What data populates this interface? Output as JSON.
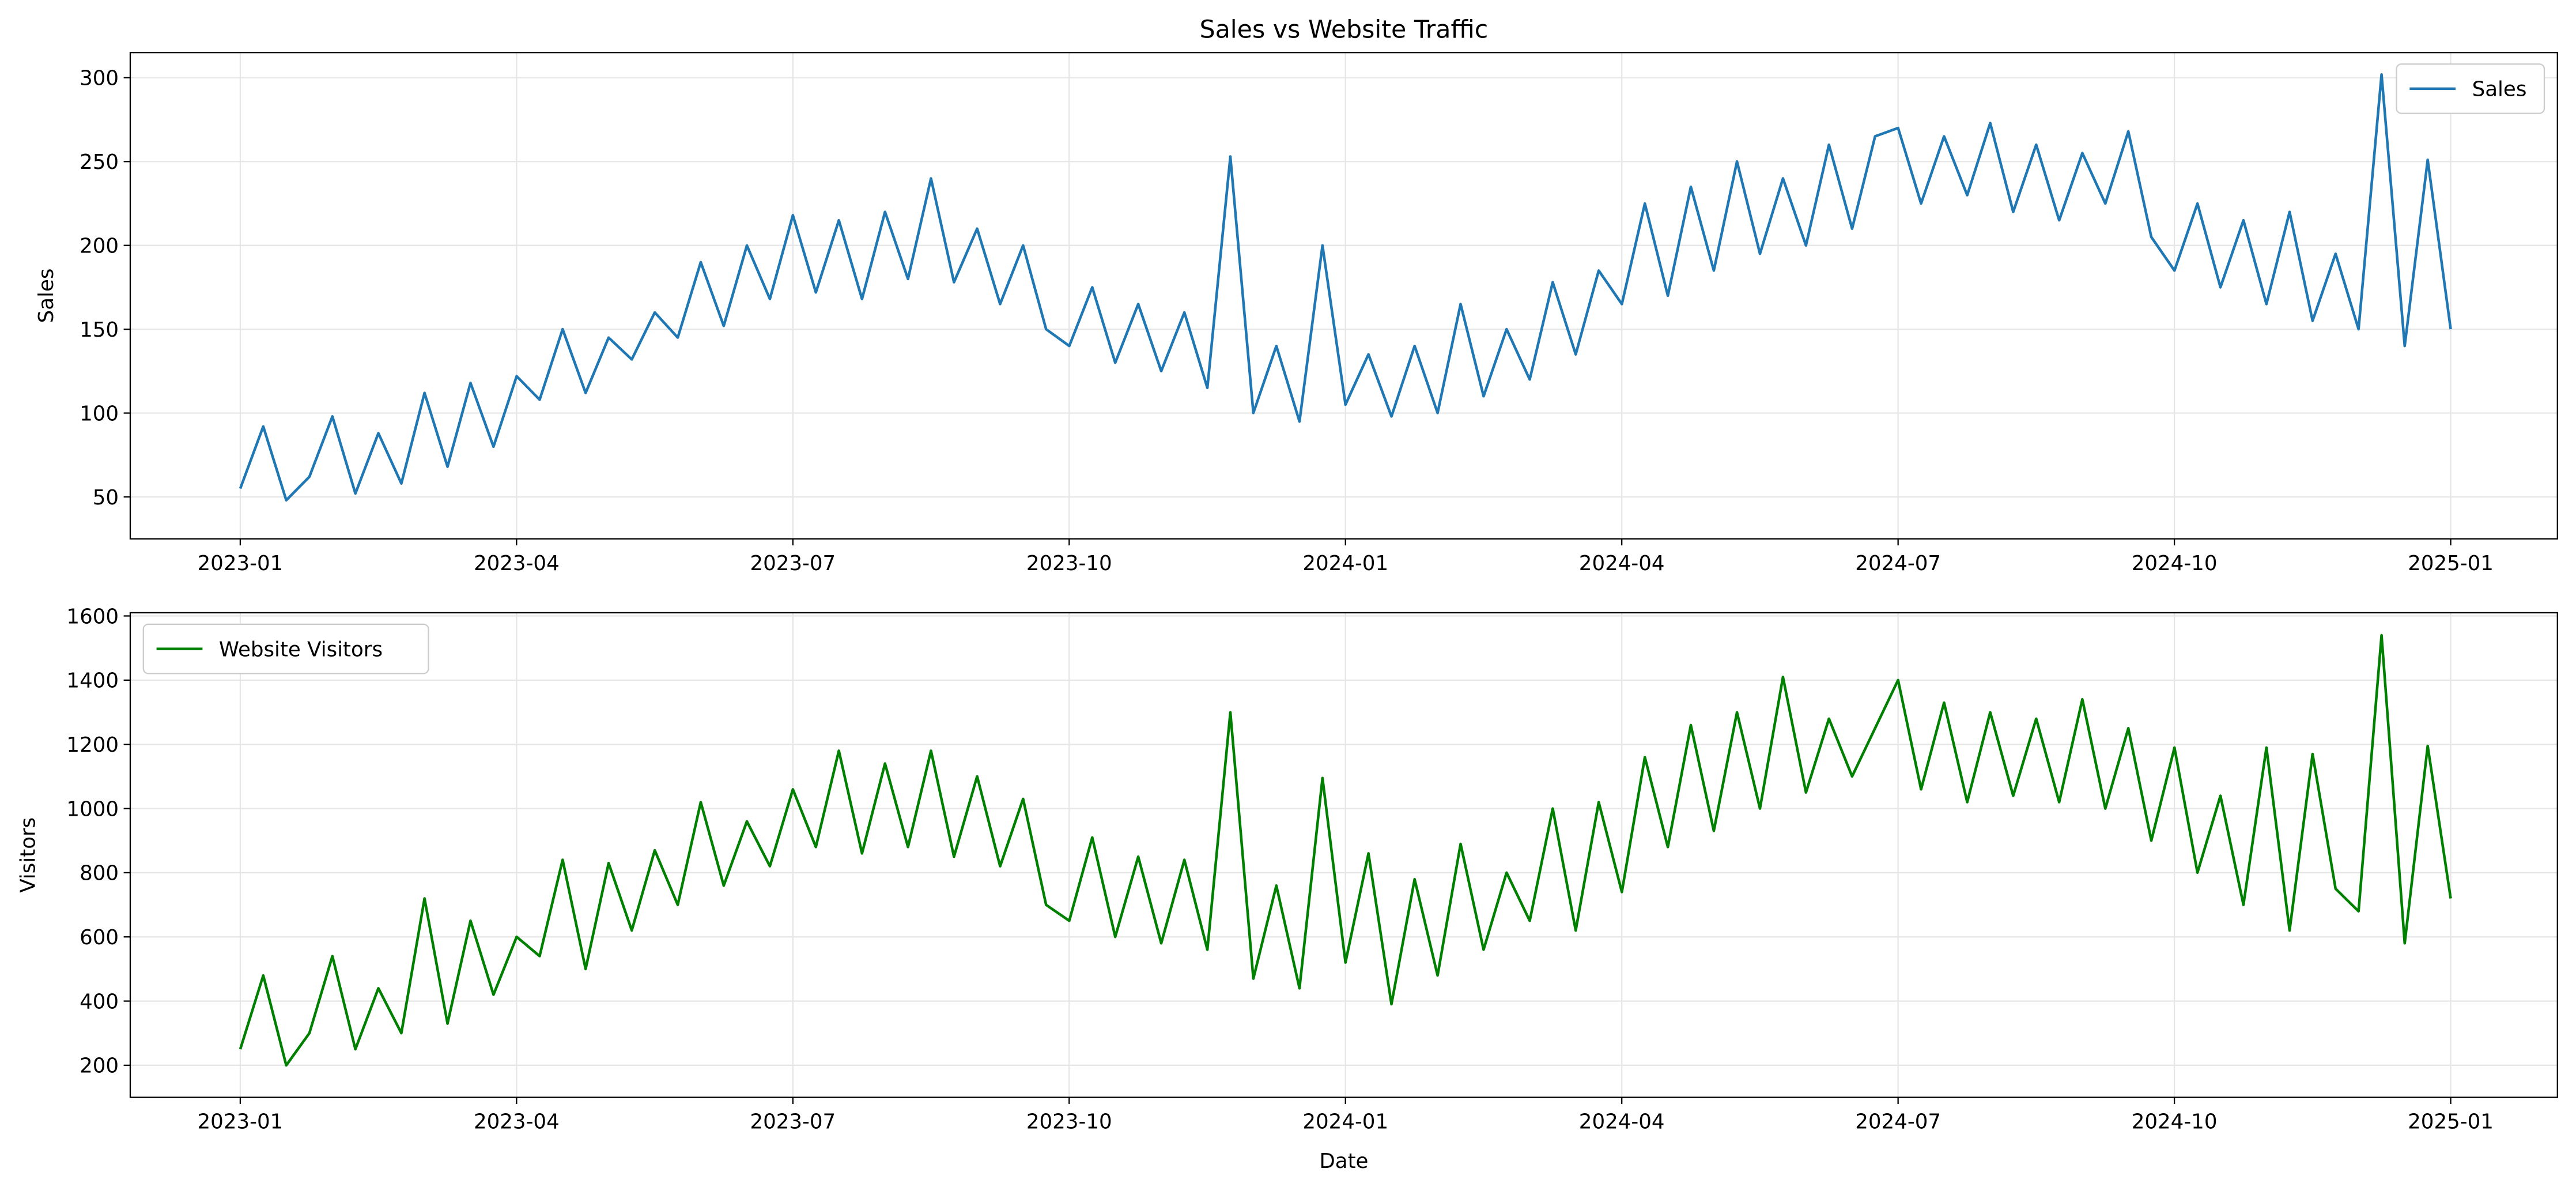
{
  "chart_data": [
    {
      "type": "line",
      "title": "Sales vs Website Traffic",
      "y_label": "Sales",
      "x": [
        "2023-01",
        null,
        null,
        null,
        null,
        null,
        null,
        null,
        null,
        null,
        null,
        null,
        "2023-04",
        null,
        null,
        null,
        null,
        null,
        null,
        null,
        null,
        null,
        null,
        null,
        "2023-07",
        null,
        null,
        null,
        null,
        null,
        null,
        null,
        null,
        null,
        null,
        null,
        "2023-10",
        null,
        null,
        null,
        null,
        null,
        null,
        null,
        null,
        null,
        null,
        null,
        "2024-01",
        null,
        null,
        null,
        null,
        null,
        null,
        null,
        null,
        null,
        null,
        null,
        "2024-04",
        null,
        null,
        null,
        null,
        null,
        null,
        null,
        null,
        null,
        null,
        null,
        "2024-07",
        null,
        null,
        null,
        null,
        null,
        null,
        null,
        null,
        null,
        null,
        null,
        "2024-10",
        null,
        null,
        null,
        null,
        null,
        null,
        null,
        null,
        null,
        null,
        null,
        "2025-01"
      ],
      "series": [
        {
          "name": "Sales",
          "color": "#1f77b4",
          "values": [
            55,
            92,
            48,
            62,
            98,
            52,
            88,
            58,
            112,
            68,
            118,
            80,
            122,
            108,
            150,
            112,
            145,
            132,
            160,
            145,
            190,
            152,
            200,
            168,
            218,
            172,
            215,
            168,
            220,
            180,
            240,
            178,
            210,
            165,
            200,
            150,
            140,
            175,
            130,
            165,
            125,
            160,
            115,
            253,
            100,
            140,
            95,
            200,
            105,
            135,
            98,
            140,
            100,
            165,
            110,
            150,
            120,
            178,
            135,
            185,
            165,
            225,
            170,
            235,
            185,
            250,
            195,
            240,
            200,
            260,
            210,
            265,
            270,
            225,
            265,
            230,
            273,
            220,
            260,
            215,
            255,
            225,
            268,
            205,
            185,
            225,
            175,
            215,
            165,
            220,
            155,
            195,
            150,
            302,
            140,
            251,
            150
          ]
        }
      ],
      "ylim": [
        25,
        315
      ],
      "yticks": [
        50,
        100,
        150,
        200,
        250,
        300
      ],
      "grid": true,
      "legend": "upper right"
    },
    {
      "type": "line",
      "x_label": "Date",
      "y_label": "Visitors",
      "x": [
        "2023-01",
        null,
        null,
        null,
        null,
        null,
        null,
        null,
        null,
        null,
        null,
        null,
        "2023-04",
        null,
        null,
        null,
        null,
        null,
        null,
        null,
        null,
        null,
        null,
        null,
        "2023-07",
        null,
        null,
        null,
        null,
        null,
        null,
        null,
        null,
        null,
        null,
        null,
        "2023-10",
        null,
        null,
        null,
        null,
        null,
        null,
        null,
        null,
        null,
        null,
        null,
        "2024-01",
        null,
        null,
        null,
        null,
        null,
        null,
        null,
        null,
        null,
        null,
        null,
        "2024-04",
        null,
        null,
        null,
        null,
        null,
        null,
        null,
        null,
        null,
        null,
        null,
        "2024-07",
        null,
        null,
        null,
        null,
        null,
        null,
        null,
        null,
        null,
        null,
        null,
        "2024-10",
        null,
        null,
        null,
        null,
        null,
        null,
        null,
        null,
        null,
        null,
        null,
        "2025-01"
      ],
      "series": [
        {
          "name": "Website Visitors",
          "color": "#008000",
          "values": [
            250,
            480,
            200,
            300,
            540,
            250,
            440,
            300,
            720,
            330,
            650,
            420,
            600,
            540,
            840,
            500,
            830,
            620,
            870,
            700,
            1020,
            760,
            960,
            820,
            1060,
            880,
            1180,
            860,
            1140,
            880,
            1180,
            850,
            1100,
            820,
            1030,
            700,
            650,
            910,
            600,
            850,
            580,
            840,
            560,
            1300,
            470,
            760,
            440,
            1095,
            520,
            860,
            390,
            780,
            480,
            890,
            560,
            800,
            650,
            1000,
            620,
            1020,
            740,
            1160,
            880,
            1260,
            930,
            1300,
            1000,
            1410,
            1050,
            1280,
            1100,
            1250,
            1400,
            1060,
            1330,
            1020,
            1300,
            1040,
            1280,
            1020,
            1340,
            1000,
            1250,
            900,
            1190,
            800,
            1040,
            700,
            1190,
            620,
            1170,
            750,
            680,
            1540,
            580,
            1195,
            720
          ]
        }
      ],
      "ylim": [
        100,
        1610
      ],
      "yticks": [
        200,
        400,
        600,
        800,
        1000,
        1200,
        1400,
        1600
      ],
      "grid": true,
      "legend": "upper left"
    }
  ]
}
